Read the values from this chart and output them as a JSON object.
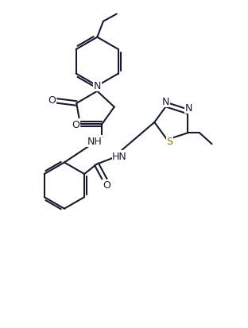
{
  "bg_color": "#ffffff",
  "line_color": "#1a1a2e",
  "atom_colors": {
    "N": "#1a1a2e",
    "O": "#1a1a2e",
    "S": "#8B6914",
    "C": "#1a1a2e"
  },
  "line_width": 1.5,
  "figsize": [
    3.12,
    4.14
  ],
  "dpi": 100
}
